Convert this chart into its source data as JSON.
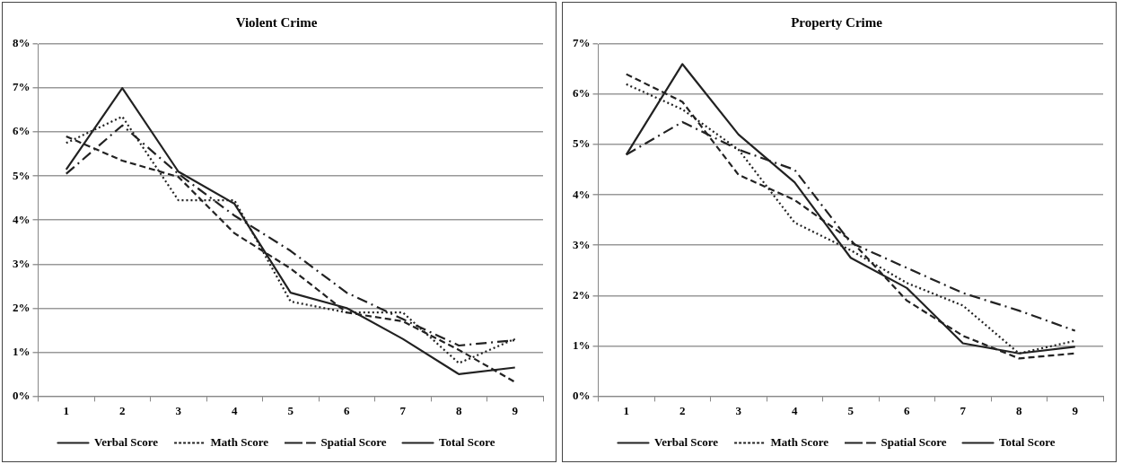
{
  "chart_data": [
    {
      "type": "line",
      "title": "Violent Crime",
      "categories": [
        "1",
        "2",
        "3",
        "4",
        "5",
        "6",
        "7",
        "8",
        "9"
      ],
      "series": [
        {
          "name": "Verbal Score",
          "color": "#222222",
          "line_style": "dashed",
          "values": [
            5.9,
            5.35,
            4.98,
            3.7,
            2.9,
            1.9,
            1.7,
            1.05,
            0.32
          ]
        },
        {
          "name": "Math Score",
          "color": "#222222",
          "line_style": "dotted",
          "values": [
            5.75,
            6.35,
            4.45,
            4.45,
            2.15,
            1.9,
            1.9,
            0.75,
            1.3
          ]
        },
        {
          "name": "Spatial Score",
          "color": "#222222",
          "line_style": "dashdot",
          "values": [
            5.05,
            6.15,
            5.05,
            4.1,
            3.3,
            2.35,
            1.75,
            1.15,
            1.27
          ]
        },
        {
          "name": "Total Score",
          "color": "#222222",
          "line_style": "solid",
          "values": [
            5.15,
            7.0,
            5.1,
            4.37,
            2.35,
            2.0,
            1.3,
            0.5,
            0.65
          ]
        }
      ],
      "ylim": [
        0,
        8
      ],
      "yticks": [
        {
          "value": 0,
          "label": "0%"
        },
        {
          "value": 1,
          "label": "1%"
        },
        {
          "value": 2,
          "label": "2%"
        },
        {
          "value": 3,
          "label": "3%"
        },
        {
          "value": 4,
          "label": "4%"
        },
        {
          "value": 5,
          "label": "5%"
        },
        {
          "value": 6,
          "label": "6%"
        },
        {
          "value": 7,
          "label": "7%"
        },
        {
          "value": 8,
          "label": "8%"
        }
      ],
      "grid": "y",
      "legend": "bottom",
      "marker": "none"
    },
    {
      "type": "line",
      "title": "Property Crime",
      "categories": [
        "1",
        "2",
        "3",
        "4",
        "5",
        "6",
        "7",
        "8",
        "9"
      ],
      "series": [
        {
          "name": "Verbal Score",
          "color": "#222222",
          "line_style": "dashed",
          "values": [
            6.4,
            5.85,
            4.4,
            3.9,
            3.1,
            1.9,
            1.2,
            0.75,
            0.85
          ]
        },
        {
          "name": "Math Score",
          "color": "#222222",
          "line_style": "dotted",
          "values": [
            6.2,
            5.7,
            4.9,
            3.45,
            2.9,
            2.25,
            1.8,
            0.85,
            1.1
          ]
        },
        {
          "name": "Spatial Score",
          "color": "#222222",
          "line_style": "dashdot",
          "values": [
            4.8,
            5.45,
            4.9,
            4.5,
            3.05,
            2.55,
            2.05,
            1.7,
            1.3
          ]
        },
        {
          "name": "Total Score",
          "color": "#222222",
          "line_style": "solid",
          "values": [
            4.8,
            6.6,
            5.2,
            4.25,
            2.75,
            2.15,
            1.05,
            0.85,
            0.98
          ]
        }
      ],
      "ylim": [
        0,
        7
      ],
      "yticks": [
        {
          "value": 0,
          "label": "0%"
        },
        {
          "value": 1,
          "label": "1%"
        },
        {
          "value": 2,
          "label": "2%"
        },
        {
          "value": 3,
          "label": "3%"
        },
        {
          "value": 4,
          "label": "4%"
        },
        {
          "value": 5,
          "label": "5%"
        },
        {
          "value": 6,
          "label": "6%"
        },
        {
          "value": 7,
          "label": "7%"
        }
      ],
      "grid": "y",
      "legend": "bottom",
      "marker": "none"
    }
  ]
}
